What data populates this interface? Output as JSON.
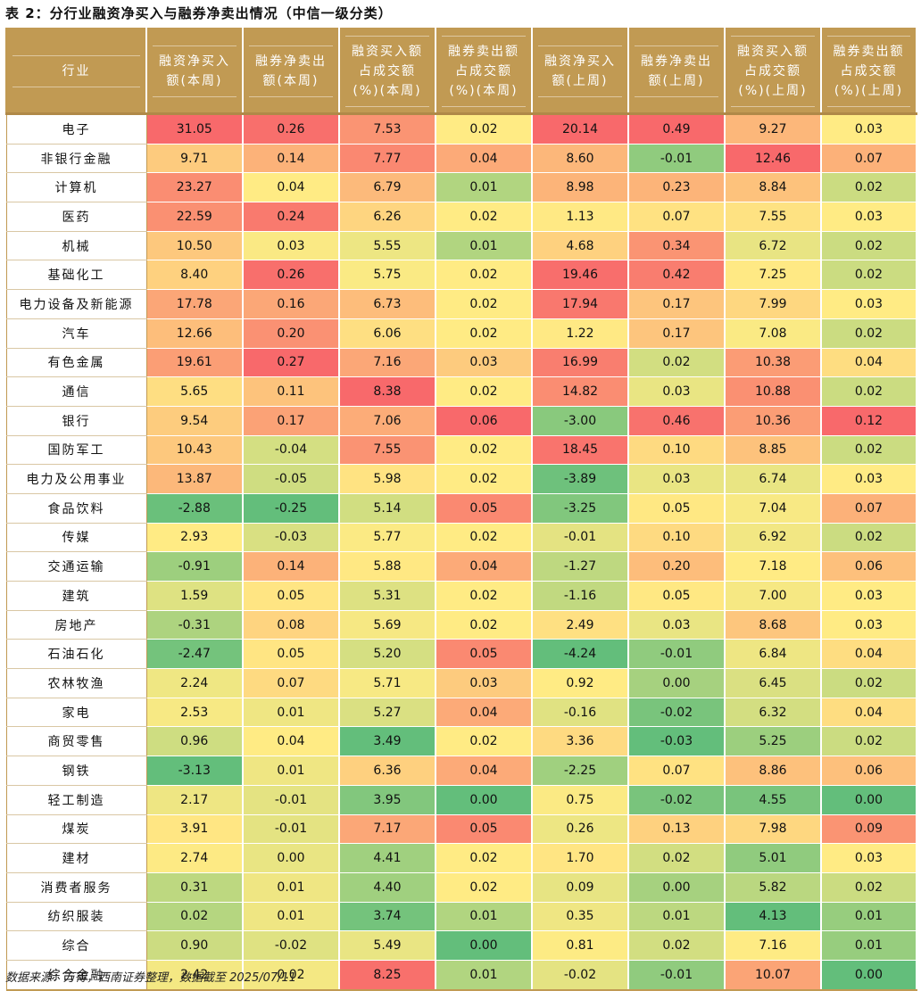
{
  "title": "表 2：分行业融资净买入与融券净卖出情况（中信一级分类）",
  "columns": [
    "行业",
    [
      "融资净买入",
      "额(本周)"
    ],
    [
      "融券净卖出",
      "额(本周)"
    ],
    [
      "融资买入额",
      "占成交额",
      "(%)(本周)"
    ],
    [
      "融券卖出额",
      "占成交额",
      "(%)(本周)"
    ],
    [
      "融资净买入",
      "额(上周)"
    ],
    [
      "融券净卖出",
      "额(上周)"
    ],
    [
      "融资买入额",
      "占成交额",
      "(%)(上周)"
    ],
    [
      "融券卖出额",
      "占成交额",
      "(%)(上周)"
    ]
  ],
  "rows": [
    [
      "电子",
      "31.05",
      "0.26",
      "7.53",
      "0.02",
      "20.14",
      "0.49",
      "9.27",
      "0.03"
    ],
    [
      "非银行金融",
      "9.71",
      "0.14",
      "7.77",
      "0.04",
      "8.60",
      "-0.01",
      "12.46",
      "0.07"
    ],
    [
      "计算机",
      "23.27",
      "0.04",
      "6.79",
      "0.01",
      "8.98",
      "0.23",
      "8.84",
      "0.02"
    ],
    [
      "医药",
      "22.59",
      "0.24",
      "6.26",
      "0.02",
      "1.13",
      "0.07",
      "7.55",
      "0.03"
    ],
    [
      "机械",
      "10.50",
      "0.03",
      "5.55",
      "0.01",
      "4.68",
      "0.34",
      "6.72",
      "0.02"
    ],
    [
      "基础化工",
      "8.40",
      "0.26",
      "5.75",
      "0.02",
      "19.46",
      "0.42",
      "7.25",
      "0.02"
    ],
    [
      "电力设备及新能源",
      "17.78",
      "0.16",
      "6.73",
      "0.02",
      "17.94",
      "0.17",
      "7.99",
      "0.03"
    ],
    [
      "汽车",
      "12.66",
      "0.20",
      "6.06",
      "0.02",
      "1.22",
      "0.17",
      "7.08",
      "0.02"
    ],
    [
      "有色金属",
      "19.61",
      "0.27",
      "7.16",
      "0.03",
      "16.99",
      "0.02",
      "10.38",
      "0.04"
    ],
    [
      "通信",
      "5.65",
      "0.11",
      "8.38",
      "0.02",
      "14.82",
      "0.03",
      "10.88",
      "0.02"
    ],
    [
      "银行",
      "9.54",
      "0.17",
      "7.06",
      "0.06",
      "-3.00",
      "0.46",
      "10.36",
      "0.12"
    ],
    [
      "国防军工",
      "10.43",
      "-0.04",
      "7.55",
      "0.02",
      "18.45",
      "0.10",
      "8.85",
      "0.02"
    ],
    [
      "电力及公用事业",
      "13.87",
      "-0.05",
      "5.98",
      "0.02",
      "-3.89",
      "0.03",
      "6.74",
      "0.03"
    ],
    [
      "食品饮料",
      "-2.88",
      "-0.25",
      "5.14",
      "0.05",
      "-3.25",
      "0.05",
      "7.04",
      "0.07"
    ],
    [
      "传媒",
      "2.93",
      "-0.03",
      "5.77",
      "0.02",
      "-0.01",
      "0.10",
      "6.92",
      "0.02"
    ],
    [
      "交通运输",
      "-0.91",
      "0.14",
      "5.88",
      "0.04",
      "-1.27",
      "0.20",
      "7.18",
      "0.06"
    ],
    [
      "建筑",
      "1.59",
      "0.05",
      "5.31",
      "0.02",
      "-1.16",
      "0.05",
      "7.00",
      "0.03"
    ],
    [
      "房地产",
      "-0.31",
      "0.08",
      "5.69",
      "0.02",
      "2.49",
      "0.03",
      "8.68",
      "0.03"
    ],
    [
      "石油石化",
      "-2.47",
      "0.05",
      "5.20",
      "0.05",
      "-4.24",
      "-0.01",
      "6.84",
      "0.04"
    ],
    [
      "农林牧渔",
      "2.24",
      "0.07",
      "5.71",
      "0.03",
      "0.92",
      "0.00",
      "6.45",
      "0.02"
    ],
    [
      "家电",
      "2.53",
      "0.01",
      "5.27",
      "0.04",
      "-0.16",
      "-0.02",
      "6.32",
      "0.04"
    ],
    [
      "商贸零售",
      "0.96",
      "0.04",
      "3.49",
      "0.02",
      "3.36",
      "-0.03",
      "5.25",
      "0.02"
    ],
    [
      "钢铁",
      "-3.13",
      "0.01",
      "6.36",
      "0.04",
      "-2.25",
      "0.07",
      "8.86",
      "0.06"
    ],
    [
      "轻工制造",
      "2.17",
      "-0.01",
      "3.95",
      "0.00",
      "0.75",
      "-0.02",
      "4.55",
      "0.00"
    ],
    [
      "煤炭",
      "3.91",
      "-0.01",
      "7.17",
      "0.05",
      "0.26",
      "0.13",
      "7.98",
      "0.09"
    ],
    [
      "建材",
      "2.74",
      "0.00",
      "4.41",
      "0.02",
      "1.70",
      "0.02",
      "5.01",
      "0.03"
    ],
    [
      "消费者服务",
      "0.31",
      "0.01",
      "4.40",
      "0.02",
      "0.09",
      "0.00",
      "5.82",
      "0.02"
    ],
    [
      "纺织服装",
      "0.02",
      "0.01",
      "3.74",
      "0.01",
      "0.35",
      "0.01",
      "4.13",
      "0.01"
    ],
    [
      "综合",
      "0.90",
      "-0.02",
      "5.49",
      "0.00",
      "0.81",
      "0.02",
      "7.16",
      "0.01"
    ],
    [
      "综合金融",
      "2.42",
      "0.02",
      "8.25",
      "0.01",
      "-0.02",
      "-0.01",
      "10.07",
      "0.00"
    ]
  ],
  "colors": {
    "header_bg": "#c19a53",
    "header_text": "#ffffff",
    "scale_low": "#63be7b",
    "scale_mid": "#ffeb84",
    "scale_high": "#f8696b"
  },
  "source_note": "数据来源：万得，西南证券整理，数据截至 2025/07/11"
}
